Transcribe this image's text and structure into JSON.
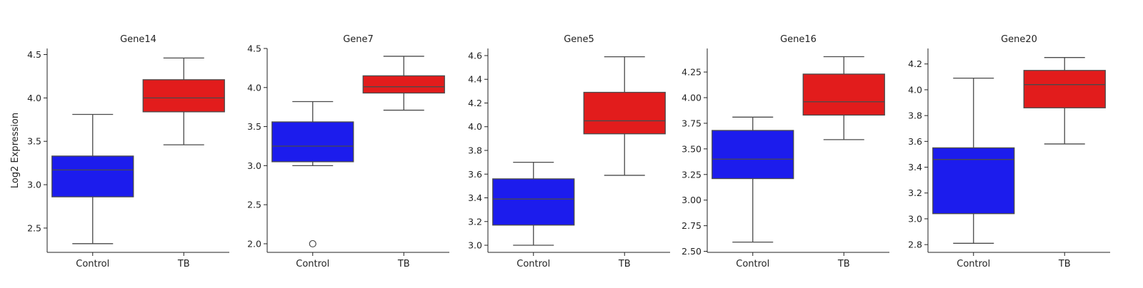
{
  "chart_data": [
    {
      "type": "box",
      "title": "Gene14",
      "ylabel": "Log2 Expression",
      "categories": [
        "Control",
        "TB"
      ],
      "ylim": [
        2.22,
        4.57
      ],
      "yticks": [
        2.5,
        3.0,
        3.5,
        4.0,
        4.5
      ],
      "tick_labels": [
        "2.5",
        "3.0",
        "3.5",
        "4.0",
        "4.5"
      ],
      "boxes": [
        {
          "category": "Control",
          "whisker_low": 2.32,
          "q1": 2.86,
          "median": 3.17,
          "q3": 3.33,
          "whisker_high": 3.81,
          "outliers": []
        },
        {
          "category": "TB",
          "whisker_low": 3.46,
          "q1": 3.84,
          "median": 4.0,
          "q3": 4.21,
          "whisker_high": 4.46,
          "outliers": []
        }
      ]
    },
    {
      "type": "box",
      "title": "Gene7",
      "ylabel": "",
      "categories": [
        "Control",
        "TB"
      ],
      "ylim": [
        1.89,
        4.5
      ],
      "yticks": [
        2.0,
        2.5,
        3.0,
        3.5,
        4.0,
        4.5
      ],
      "tick_labels": [
        "2.0",
        "2.5",
        "3.0",
        "3.5",
        "4.0",
        "4.5"
      ],
      "boxes": [
        {
          "category": "Control",
          "whisker_low": 3.0,
          "q1": 3.05,
          "median": 3.25,
          "q3": 3.56,
          "whisker_high": 3.82,
          "outliers": [
            2.0
          ]
        },
        {
          "category": "TB",
          "whisker_low": 3.71,
          "q1": 3.93,
          "median": 4.01,
          "q3": 4.15,
          "whisker_high": 4.4,
          "outliers": []
        }
      ]
    },
    {
      "type": "box",
      "title": "Gene5",
      "ylabel": "",
      "categories": [
        "Control",
        "TB"
      ],
      "ylim": [
        2.94,
        4.66
      ],
      "yticks": [
        3.0,
        3.2,
        3.4,
        3.6,
        3.8,
        4.0,
        4.2,
        4.4,
        4.6
      ],
      "tick_labels": [
        "3.0",
        "3.2",
        "3.4",
        "3.6",
        "3.8",
        "4.0",
        "4.2",
        "4.4",
        "4.6"
      ],
      "boxes": [
        {
          "category": "Control",
          "whisker_low": 3.0,
          "q1": 3.17,
          "median": 3.39,
          "q3": 3.56,
          "whisker_high": 3.7,
          "outliers": []
        },
        {
          "category": "TB",
          "whisker_low": 3.59,
          "q1": 3.94,
          "median": 4.05,
          "q3": 4.29,
          "whisker_high": 4.59,
          "outliers": []
        }
      ]
    },
    {
      "type": "box",
      "title": "Gene16",
      "ylabel": "",
      "categories": [
        "Control",
        "TB"
      ],
      "ylim": [
        2.49,
        4.48
      ],
      "yticks": [
        2.5,
        2.75,
        3.0,
        3.25,
        3.5,
        3.75,
        4.0,
        4.25
      ],
      "tick_labels": [
        "2.50",
        "2.75",
        "3.00",
        "3.25",
        "3.50",
        "3.75",
        "4.00",
        "4.25"
      ],
      "boxes": [
        {
          "category": "Control",
          "whisker_low": 2.59,
          "q1": 3.21,
          "median": 3.4,
          "q3": 3.68,
          "whisker_high": 3.81,
          "outliers": []
        },
        {
          "category": "TB",
          "whisker_low": 3.59,
          "q1": 3.83,
          "median": 3.96,
          "q3": 4.23,
          "whisker_high": 4.4,
          "outliers": []
        }
      ]
    },
    {
      "type": "box",
      "title": "Gene20",
      "ylabel": "",
      "categories": [
        "Control",
        "TB"
      ],
      "ylim": [
        2.74,
        4.32
      ],
      "yticks": [
        2.8,
        3.0,
        3.2,
        3.4,
        3.6,
        3.8,
        4.0,
        4.2
      ],
      "tick_labels": [
        "2.8",
        "3.0",
        "3.2",
        "3.4",
        "3.6",
        "3.8",
        "4.0",
        "4.2"
      ],
      "boxes": [
        {
          "category": "Control",
          "whisker_low": 2.81,
          "q1": 3.04,
          "median": 3.46,
          "q3": 3.55,
          "whisker_high": 4.09,
          "outliers": []
        },
        {
          "category": "TB",
          "whisker_low": 3.58,
          "q1": 3.86,
          "median": 4.04,
          "q3": 4.15,
          "whisker_high": 4.25,
          "outliers": []
        }
      ]
    }
  ],
  "colors": {
    "Control": "#1c1ced",
    "TB": "#e21c1c",
    "line": "#4a4a4a",
    "axis": "#222222"
  }
}
